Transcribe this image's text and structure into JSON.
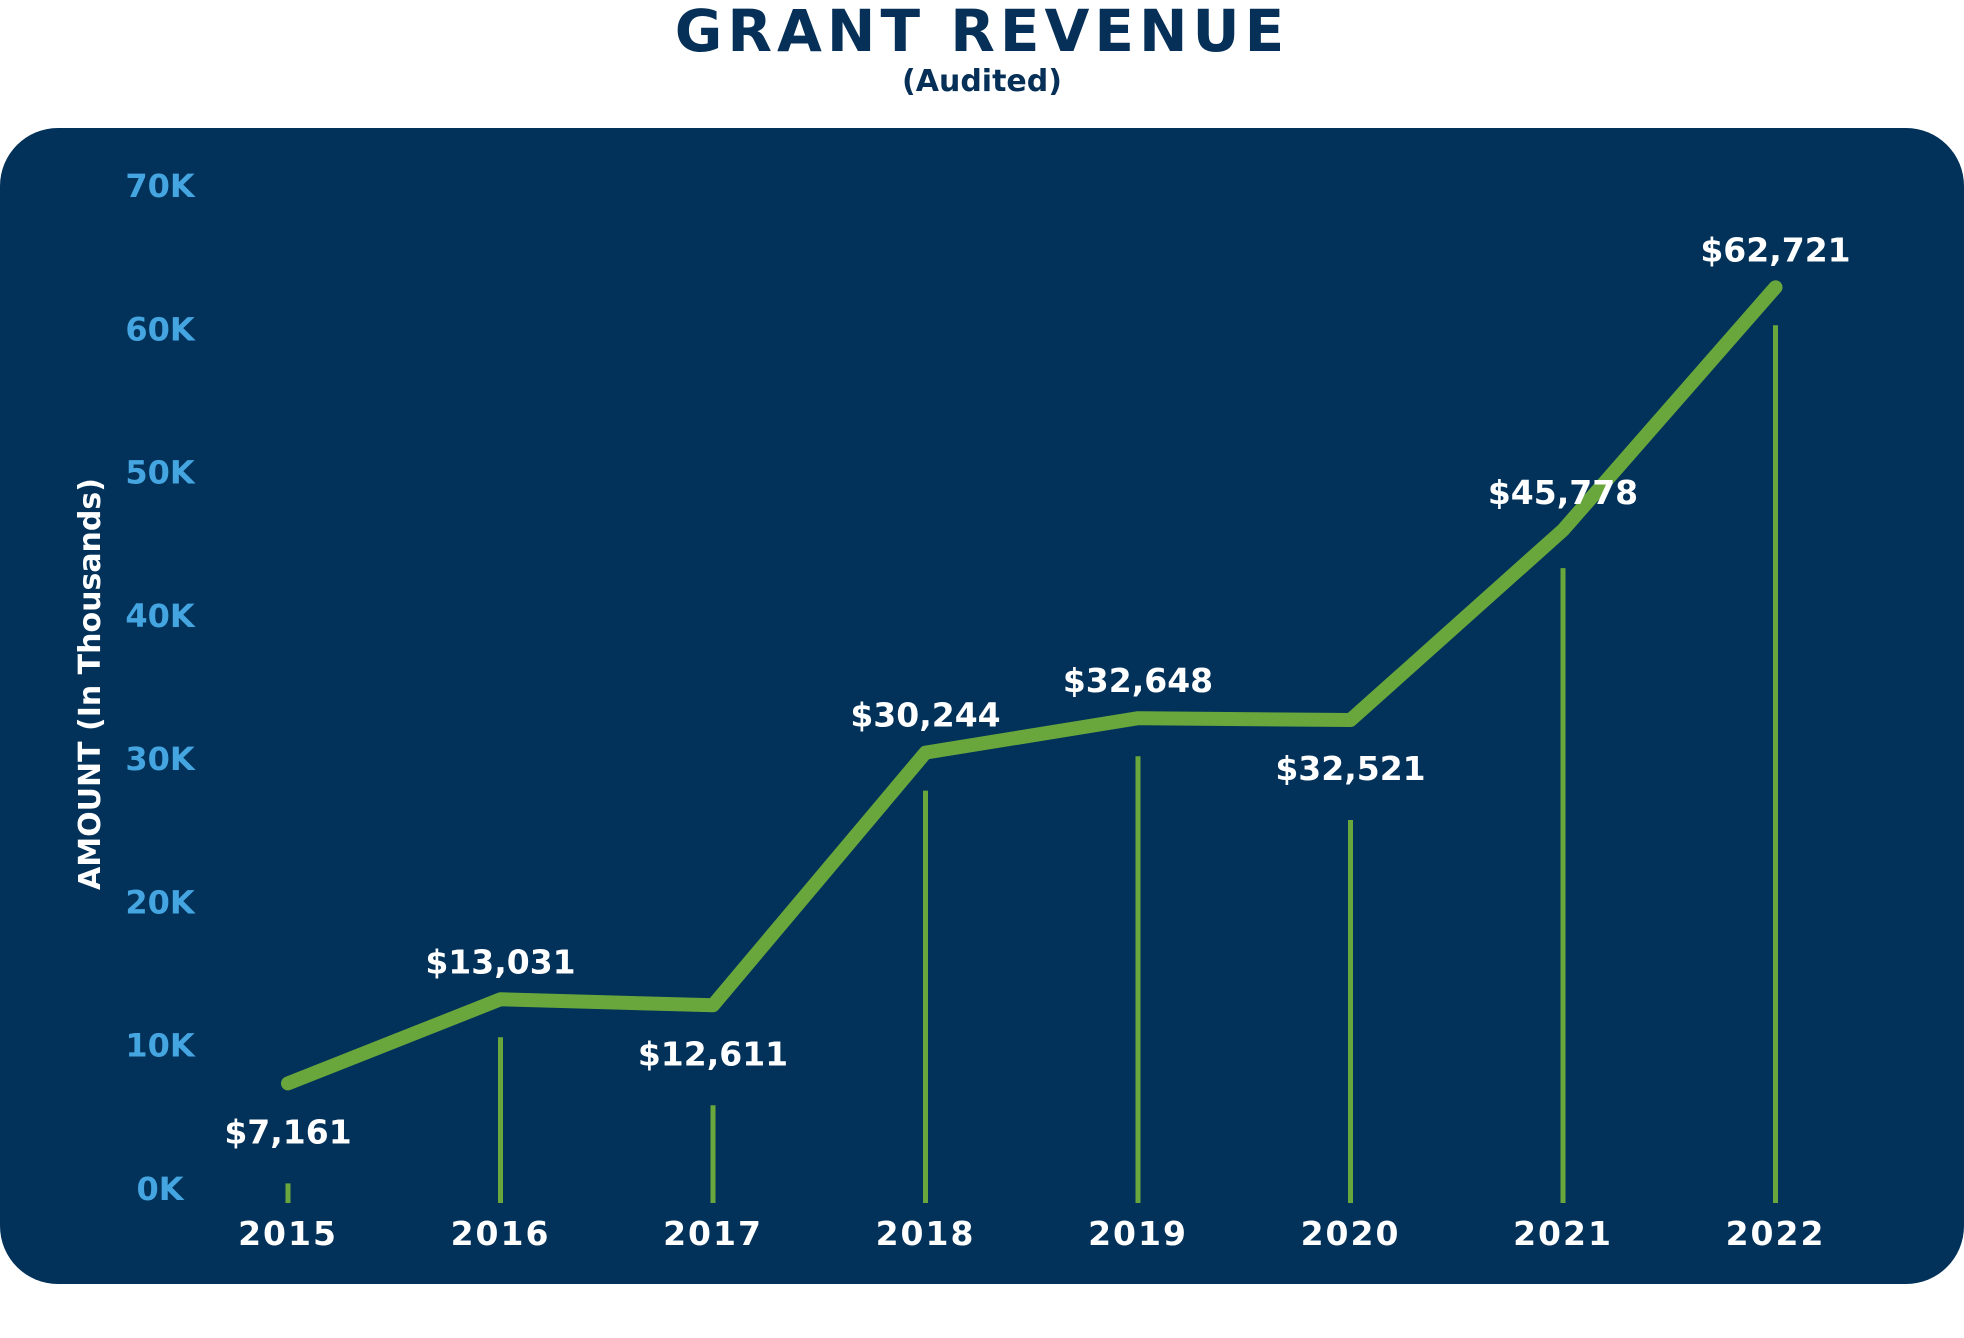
{
  "chart_data": {
    "type": "line",
    "title": "GRANT REVENUE",
    "subtitle": "(Audited)",
    "ylabel": "AMOUNT (In Thousands)",
    "xlabel": "",
    "categories": [
      "2015",
      "2016",
      "2017",
      "2018",
      "2019",
      "2020",
      "2021",
      "2022"
    ],
    "values": [
      7161,
      13031,
      12611,
      30244,
      32648,
      32521,
      45778,
      62721
    ],
    "value_labels": [
      "$7,161",
      "$13,031",
      "$12,611",
      "$30,244",
      "$32,648",
      "$32,521",
      "$45,778",
      "$62,721"
    ],
    "label_positions": [
      "below",
      "above",
      "below",
      "above",
      "above",
      "below",
      "above",
      "above"
    ],
    "ylim": [
      0,
      70000
    ],
    "y_ticks": [
      0,
      10000,
      20000,
      30000,
      40000,
      50000,
      60000,
      70000
    ],
    "y_tick_labels": [
      "0K",
      "10K",
      "20K",
      "30K",
      "40K",
      "50K",
      "60K",
      "70K"
    ],
    "grid": false,
    "legend": "none",
    "colors": {
      "panel_background": "#02325a",
      "line": "#69a73c",
      "drop_lines": "#69a73c",
      "value_labels": "#ffffff",
      "year_labels": "#ffffff",
      "y_tick_labels": "#44a5e0",
      "y_axis_label": "#ffffff",
      "title": "#063057"
    }
  }
}
